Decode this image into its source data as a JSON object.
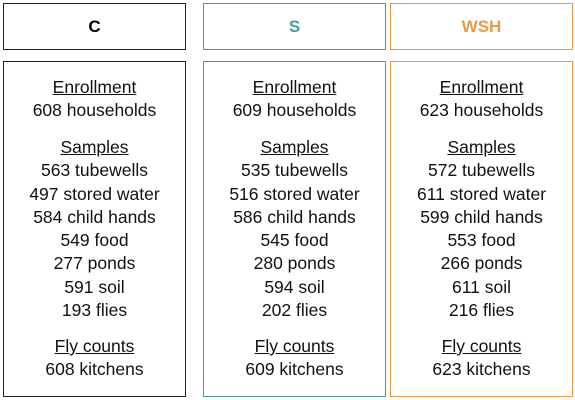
{
  "colors": {
    "C": "#222222",
    "S": "#4a9a9c",
    "WSH": "#ee9a45"
  },
  "columns": [
    {
      "header": "C",
      "enrollment_title": "Enrollment",
      "enrollment": "608 households",
      "samples_title": "Samples",
      "samples": [
        "563 tubewells",
        "497 stored water",
        "584 child hands",
        "549 food",
        "277 ponds",
        "591 soil",
        "193 flies"
      ],
      "fly_title": "Fly counts",
      "fly": "608 kitchens"
    },
    {
      "header": "S",
      "enrollment_title": "Enrollment",
      "enrollment": "609 households",
      "samples_title": "Samples",
      "samples": [
        "535 tubewells",
        "516 stored water",
        "586 child hands",
        "545 food",
        "280 ponds",
        "594 soil",
        "202 flies"
      ],
      "fly_title": "Fly counts",
      "fly": "609 kitchens"
    },
    {
      "header": "WSH",
      "enrollment_title": "Enrollment",
      "enrollment": "623 households",
      "samples_title": "Samples",
      "samples": [
        "572 tubewells",
        "611 stored water",
        "599 child hands",
        "553 food",
        "266 ponds",
        "611 soil",
        "216 flies"
      ],
      "fly_title": "Fly counts",
      "fly": "623 kitchens"
    }
  ]
}
